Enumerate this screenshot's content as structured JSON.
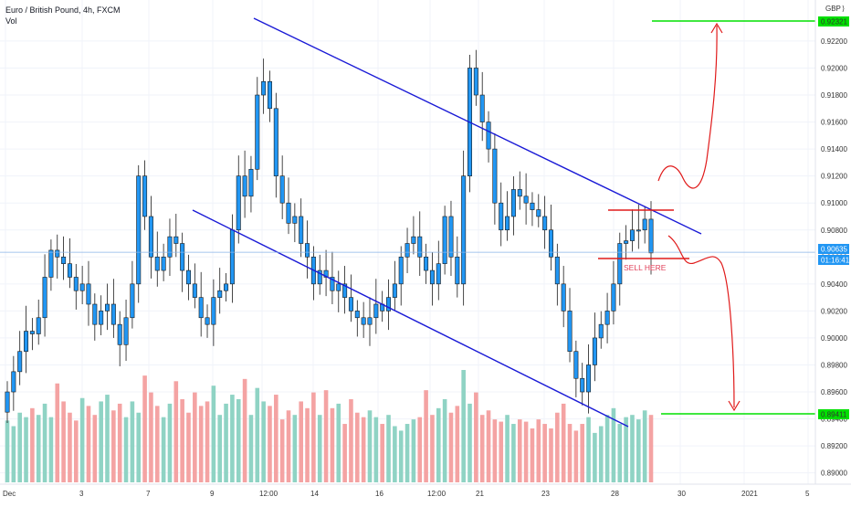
{
  "header": {
    "symbol_line": "Euro / British Pound, 4h, FXCM",
    "volume_label": "Vol"
  },
  "axis": {
    "currency": "GBP",
    "price_ticks": [
      "0.92200",
      "0.92000",
      "0.91800",
      "0.91600",
      "0.91400",
      "0.91200",
      "0.91000",
      "0.90800",
      "0.90600",
      "0.90400",
      "0.90200",
      "0.90000",
      "0.89800",
      "0.89600",
      "0.89400",
      "0.89200",
      "0.89000"
    ],
    "date_ticks": [
      "Dec",
      "3",
      "7",
      "9",
      "12:00",
      "14",
      "16",
      "12:00",
      "21",
      "23",
      "28",
      "30",
      "2021",
      "5"
    ]
  },
  "price_tags": {
    "target_high": "0.92321",
    "target_low": "0.89411",
    "current": "0.90635",
    "countdown": "01:16:41"
  },
  "annotations": {
    "sell_text": "SELL HERE"
  },
  "colors": {
    "bull": "#2196f3",
    "bear": "#2196f3",
    "vol_up": "#8fd3c4",
    "vol_down": "#f4a3a3",
    "channel": "#1a1ad6",
    "target": "#00e000",
    "red": "#e01a1a",
    "current_line": "#8ab4e8"
  },
  "chart_data": {
    "type": "candlestick",
    "title": "Euro / British Pound, 4h, FXCM",
    "ylim": [
      0.8893,
      0.9245
    ],
    "close_series": [
      0.896,
      0.8975,
      0.899,
      0.9005,
      0.9003,
      0.9015,
      0.9045,
      0.9065,
      0.906,
      0.9055,
      0.9045,
      0.9035,
      0.904,
      0.9025,
      0.901,
      0.902,
      0.9025,
      0.901,
      0.8995,
      0.9015,
      0.904,
      0.912,
      0.909,
      0.906,
      0.905,
      0.906,
      0.9075,
      0.907,
      0.905,
      0.904,
      0.903,
      0.9015,
      0.901,
      0.903,
      0.9035,
      0.904,
      0.908,
      0.912,
      0.9105,
      0.9125,
      0.918,
      0.919,
      0.917,
      0.912,
      0.91,
      0.9085,
      0.909,
      0.907,
      0.906,
      0.904,
      0.905,
      0.9045,
      0.9035,
      0.904,
      0.903,
      0.902,
      0.9015,
      0.901,
      0.9015,
      0.9025,
      0.902,
      0.903,
      0.904,
      0.906,
      0.907,
      0.9075,
      0.906,
      0.905,
      0.904,
      0.9055,
      0.909,
      0.906,
      0.904,
      0.912,
      0.92,
      0.918,
      0.916,
      0.914,
      0.91,
      0.908,
      0.909,
      0.911,
      0.9105,
      0.91,
      0.9095,
      0.909,
      0.908,
      0.906,
      0.904,
      0.902,
      0.899,
      0.897,
      0.896,
      0.898,
      0.9,
      0.901,
      0.902,
      0.904,
      0.907,
      0.9072,
      0.908,
      0.908,
      0.9088,
      0.9063
    ],
    "volume_relative": [
      0.55,
      0.5,
      0.62,
      0.58,
      0.66,
      0.6,
      0.7,
      0.58,
      0.88,
      0.72,
      0.62,
      0.55,
      0.75,
      0.68,
      0.6,
      0.72,
      0.78,
      0.64,
      0.7,
      0.58,
      0.72,
      0.62,
      0.95,
      0.8,
      0.68,
      0.58,
      0.7,
      0.9,
      0.74,
      0.62,
      0.8,
      0.68,
      0.72,
      0.86,
      0.6,
      0.7,
      0.78,
      0.74,
      0.92,
      0.6,
      0.84,
      0.72,
      0.68,
      0.78,
      0.56,
      0.64,
      0.6,
      0.72,
      0.66,
      0.8,
      0.6,
      0.82,
      0.66,
      0.7,
      0.52,
      0.74,
      0.62,
      0.58,
      0.64,
      0.58,
      0.52,
      0.6,
      0.5,
      0.46,
      0.52,
      0.56,
      0.58,
      0.82,
      0.6,
      0.66,
      0.74,
      0.62,
      0.68,
      1.0,
      0.7,
      0.8,
      0.6,
      0.64,
      0.56,
      0.54,
      0.6,
      0.52,
      0.56,
      0.54,
      0.48,
      0.56,
      0.52,
      0.48,
      0.62,
      0.7,
      0.52,
      0.46,
      0.52,
      0.58,
      0.44,
      0.5,
      0.6,
      0.66,
      0.52,
      0.58,
      0.6,
      0.56,
      0.64,
      0.6
    ],
    "channel_upper": {
      "x_start": 0.3,
      "y_start": 0.9231,
      "x_end": 0.82,
      "y_end": 0.9084
    },
    "channel_lower": {
      "x_start": 0.225,
      "y_start": 0.9093,
      "x_end": 0.74,
      "y_end": 0.8943
    },
    "range_box": {
      "top": 0.9093,
      "bottom": 0.9058
    },
    "targets": [
      0.92321,
      0.89411
    ],
    "current_price": 0.90635
  }
}
